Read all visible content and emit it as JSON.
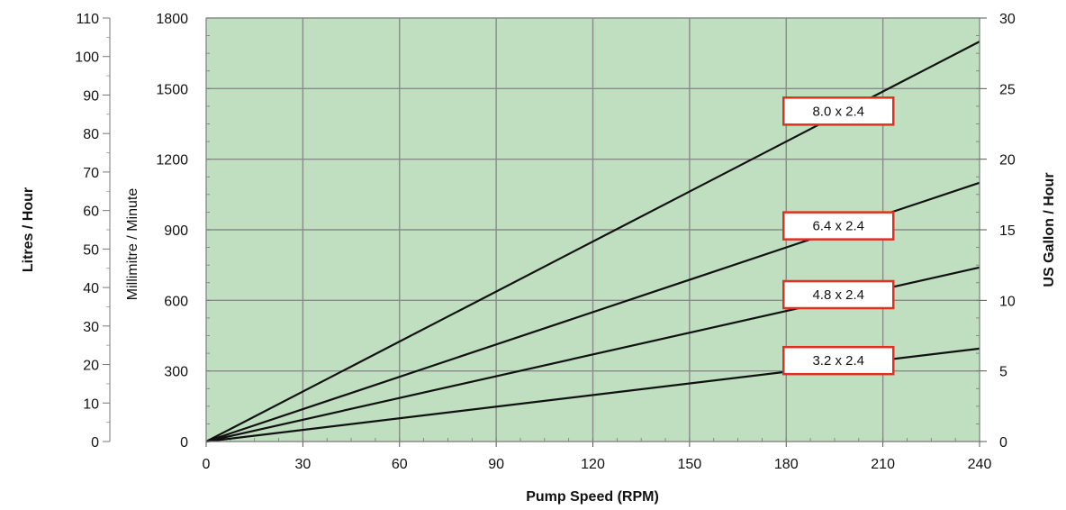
{
  "chart_data": {
    "type": "line",
    "title": "",
    "xlabel": "Pump Speed (RPM)",
    "ylabel": "Millimitre / Minute",
    "ylabel_left_outer": "Litres / Hour",
    "ylabel_right": "US  Gallon / Hour",
    "xlim": [
      0,
      240
    ],
    "ylim": [
      0,
      1800
    ],
    "x_ticks": [
      "0",
      "30",
      "60",
      "90",
      "120",
      "150",
      "180",
      "210",
      "240"
    ],
    "y_ticks": [
      "0",
      "300",
      "600",
      "900",
      "1200",
      "1500",
      "1800"
    ],
    "litres_ticks": [
      "0",
      "10",
      "20",
      "30",
      "40",
      "50",
      "60",
      "70",
      "80",
      "90",
      "100",
      "110"
    ],
    "gallon_ticks": [
      "0",
      "5",
      "10",
      "15",
      "20",
      "25",
      "30"
    ],
    "litres_lim": [
      0,
      110
    ],
    "gallon_lim": [
      0,
      30
    ],
    "grid": true,
    "background_color": "#bfdfc0",
    "grid_color": "#8a8a8a",
    "line_color": "#111111",
    "label_border_color": "#e03020",
    "series": [
      {
        "name": "8.0 x 2.4",
        "x": [
          0,
          240
        ],
        "y": [
          0,
          1700
        ]
      },
      {
        "name": "6.4 x 2.4",
        "x": [
          0,
          240
        ],
        "y": [
          0,
          1100
        ]
      },
      {
        "name": "4.8 x 2.4",
        "x": [
          0,
          240
        ],
        "y": [
          0,
          740
        ]
      },
      {
        "name": "3.2 x 2.4",
        "x": [
          0,
          240
        ],
        "y": [
          0,
          395
        ]
      }
    ]
  }
}
